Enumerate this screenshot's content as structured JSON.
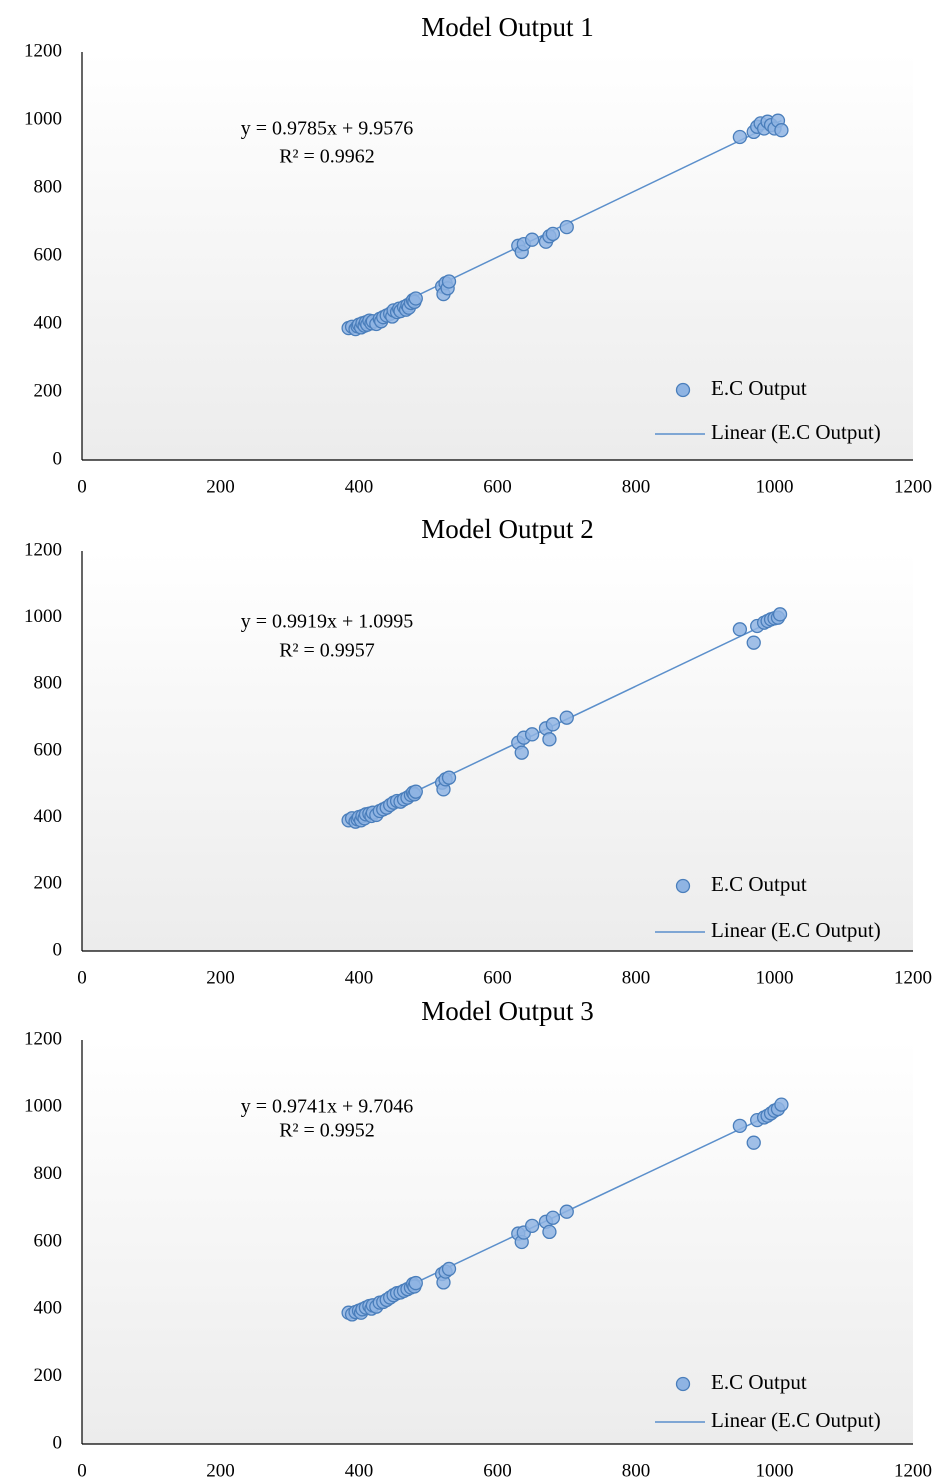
{
  "chart_data": [
    {
      "type": "scatter",
      "title": "Model Output 1",
      "xlim": [
        0,
        1200
      ],
      "ylim": [
        0,
        1200
      ],
      "xticks": [
        "0",
        "200",
        "400",
        "600",
        "800",
        "1000",
        "1200"
      ],
      "yticks": [
        "0",
        "200",
        "400",
        "600",
        "800",
        "1000",
        "1200"
      ],
      "grid": false,
      "legend_position": "bottom-right",
      "series": [
        {
          "name": "E.C Output",
          "marker": "circle",
          "color": "#8FB4E3",
          "points": [
            [
              385,
              388
            ],
            [
              390,
              392
            ],
            [
              395,
              385
            ],
            [
              398,
              393
            ],
            [
              400,
              398
            ],
            [
              403,
              390
            ],
            [
              405,
              402
            ],
            [
              408,
              395
            ],
            [
              410,
              405
            ],
            [
              412,
              398
            ],
            [
              415,
              410
            ],
            [
              418,
              402
            ],
            [
              420,
              408
            ],
            [
              425,
              400
            ],
            [
              430,
              415
            ],
            [
              432,
              408
            ],
            [
              435,
              420
            ],
            [
              440,
              425
            ],
            [
              445,
              430
            ],
            [
              448,
              422
            ],
            [
              450,
              440
            ],
            [
              455,
              435
            ],
            [
              458,
              445
            ],
            [
              460,
              438
            ],
            [
              465,
              450
            ],
            [
              468,
              442
            ],
            [
              470,
              455
            ],
            [
              472,
              448
            ],
            [
              475,
              462
            ],
            [
              478,
              470
            ],
            [
              480,
              465
            ],
            [
              482,
              475
            ],
            [
              520,
              510
            ],
            [
              522,
              488
            ],
            [
              525,
              520
            ],
            [
              528,
              505
            ],
            [
              530,
              525
            ],
            [
              630,
              630
            ],
            [
              635,
              612
            ],
            [
              638,
              635
            ],
            [
              650,
              648
            ],
            [
              670,
              642
            ],
            [
              675,
              658
            ],
            [
              680,
              665
            ],
            [
              700,
              685
            ],
            [
              950,
              950
            ],
            [
              970,
              965
            ],
            [
              975,
              980
            ],
            [
              980,
              990
            ],
            [
              985,
              975
            ],
            [
              990,
              995
            ],
            [
              995,
              985
            ],
            [
              1000,
              975
            ],
            [
              1005,
              998
            ],
            [
              1010,
              970
            ]
          ]
        },
        {
          "name": "Linear (E.C Output)",
          "type": "trendline",
          "slope": 0.9785,
          "intercept": 9.9576,
          "x_range": [
            385,
            1010
          ]
        }
      ],
      "annotation": {
        "equation": "y = 0.9785x + 9.9576",
        "r2": "R² = 0.9962"
      }
    },
    {
      "type": "scatter",
      "title": "Model Output 2",
      "xlim": [
        0,
        1200
      ],
      "ylim": [
        0,
        1200
      ],
      "xticks": [
        "0",
        "200",
        "400",
        "600",
        "800",
        "1000",
        "1200"
      ],
      "yticks": [
        "0",
        "200",
        "400",
        "600",
        "800",
        "1000",
        "1200"
      ],
      "grid": false,
      "legend_position": "bottom-right",
      "series": [
        {
          "name": "E.C Output",
          "marker": "circle",
          "color": "#8FB4E3",
          "points": [
            [
              385,
              392
            ],
            [
              390,
              398
            ],
            [
              395,
              388
            ],
            [
              398,
              395
            ],
            [
              400,
              402
            ],
            [
              403,
              392
            ],
            [
              405,
              405
            ],
            [
              408,
              398
            ],
            [
              410,
              410
            ],
            [
              415,
              412
            ],
            [
              418,
              405
            ],
            [
              420,
              415
            ],
            [
              425,
              408
            ],
            [
              430,
              420
            ],
            [
              435,
              425
            ],
            [
              440,
              430
            ],
            [
              445,
              438
            ],
            [
              450,
              445
            ],
            [
              455,
              450
            ],
            [
              460,
              448
            ],
            [
              465,
              455
            ],
            [
              470,
              460
            ],
            [
              475,
              468
            ],
            [
              478,
              475
            ],
            [
              480,
              470
            ],
            [
              482,
              478
            ],
            [
              520,
              505
            ],
            [
              522,
              485
            ],
            [
              525,
              515
            ],
            [
              530,
              520
            ],
            [
              630,
              625
            ],
            [
              635,
              595
            ],
            [
              638,
              640
            ],
            [
              650,
              650
            ],
            [
              670,
              668
            ],
            [
              675,
              635
            ],
            [
              680,
              680
            ],
            [
              700,
              700
            ],
            [
              950,
              965
            ],
            [
              970,
              925
            ],
            [
              975,
              975
            ],
            [
              985,
              985
            ],
            [
              990,
              990
            ],
            [
              995,
              995
            ],
            [
              1000,
              998
            ],
            [
              1005,
              1000
            ],
            [
              1008,
              1010
            ]
          ]
        },
        {
          "name": "Linear (E.C Output)",
          "type": "trendline",
          "slope": 0.9919,
          "intercept": 1.0995,
          "x_range": [
            385,
            1010
          ]
        }
      ],
      "annotation": {
        "equation": "y = 0.9919x + 1.0995",
        "r2": "R² = 0.9957"
      }
    },
    {
      "type": "scatter",
      "title": "Model Output 3",
      "xlim": [
        0,
        1200
      ],
      "ylim": [
        0,
        1200
      ],
      "xticks": [
        "0",
        "200",
        "400",
        "600",
        "800",
        "1000",
        "1200"
      ],
      "yticks": [
        "0",
        "200",
        "400",
        "600",
        "800",
        "1000",
        "1200"
      ],
      "grid": false,
      "legend_position": "bottom-right",
      "series": [
        {
          "name": "E.C Output",
          "marker": "circle",
          "color": "#8FB4E3",
          "points": [
            [
              385,
              390
            ],
            [
              390,
              385
            ],
            [
              395,
              392
            ],
            [
              400,
              396
            ],
            [
              403,
              390
            ],
            [
              405,
              400
            ],
            [
              410,
              405
            ],
            [
              415,
              410
            ],
            [
              418,
              402
            ],
            [
              420,
              412
            ],
            [
              425,
              408
            ],
            [
              430,
              420
            ],
            [
              435,
              422
            ],
            [
              440,
              428
            ],
            [
              445,
              435
            ],
            [
              450,
              442
            ],
            [
              455,
              448
            ],
            [
              460,
              450
            ],
            [
              465,
              455
            ],
            [
              470,
              460
            ],
            [
              475,
              465
            ],
            [
              478,
              475
            ],
            [
              480,
              468
            ],
            [
              482,
              478
            ],
            [
              520,
              505
            ],
            [
              522,
              480
            ],
            [
              525,
              512
            ],
            [
              530,
              520
            ],
            [
              630,
              625
            ],
            [
              635,
              600
            ],
            [
              638,
              628
            ],
            [
              650,
              648
            ],
            [
              670,
              660
            ],
            [
              675,
              630
            ],
            [
              680,
              672
            ],
            [
              700,
              690
            ],
            [
              950,
              945
            ],
            [
              970,
              895
            ],
            [
              975,
              962
            ],
            [
              985,
              970
            ],
            [
              990,
              975
            ],
            [
              995,
              982
            ],
            [
              1000,
              990
            ],
            [
              1005,
              995
            ],
            [
              1010,
              1008
            ]
          ]
        },
        {
          "name": "Linear (E.C Output)",
          "type": "trendline",
          "slope": 0.9741,
          "intercept": 9.7046,
          "x_range": [
            385,
            1010
          ]
        }
      ],
      "annotation": {
        "equation": "y = 0.9741x + 9.7046",
        "r2": "R² = 0.9952"
      }
    }
  ]
}
